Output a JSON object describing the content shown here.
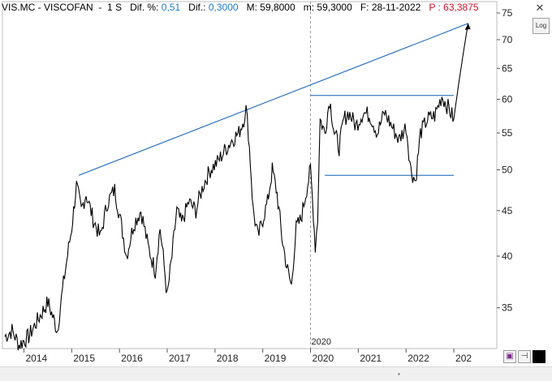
{
  "header": {
    "ticker": "VIS.MC - VISCOFAN",
    "period": "1 S",
    "dif_pct_label": "Dif. %:",
    "dif_pct_value": "0,51",
    "dif_label": "Dif.:",
    "dif_value": "0,3000",
    "high_label": "M:",
    "high_value": "59,8000",
    "low_label": "m:",
    "low_value": "59,3000",
    "date_label": "F:",
    "date_value": "28-11-2022",
    "price_label": "P :",
    "price_value": "63,3875"
  },
  "controls": {
    "close_glyph": "✕",
    "log_label": "Log",
    "save_glyph": "▣",
    "pin_glyph": "⊣",
    "color_glyph": ""
  },
  "colors": {
    "trendline": "#1060b8",
    "price": "#000000",
    "grid": "#c8c8c8",
    "header_blue": "#1f78c8",
    "header_red": "#d0142c"
  },
  "chart_data": {
    "type": "line",
    "title": "VIS.MC - VISCOFAN",
    "scale": "log",
    "ylim": [
      31.5,
      75
    ],
    "y_ticks": [
      35,
      40,
      45,
      50,
      55,
      60,
      65,
      70,
      75
    ],
    "x_ticks": [
      "2014",
      "2015",
      "2016",
      "2017",
      "2018",
      "2019",
      "2020",
      "2021",
      "2022",
      "202"
    ],
    "x_marker_label": "2020",
    "x_range": [
      2013.55,
      2023.9
    ],
    "series": [
      {
        "x": [
          2013.6,
          2013.75,
          2013.9,
          2014.1,
          2014.3,
          2014.5,
          2014.7,
          2014.85,
          2015.0,
          2015.1,
          2015.2,
          2015.3,
          2015.45,
          2015.6,
          2015.75,
          2015.9,
          2016.0,
          2016.15,
          2016.3,
          2016.45,
          2016.6,
          2016.75,
          2016.85,
          2017.0,
          2017.1,
          2017.2,
          2017.3,
          2017.45,
          2017.6,
          2017.75,
          2017.9,
          2018.05,
          2018.2,
          2018.35,
          2018.5,
          2018.6,
          2018.65,
          2018.7,
          2018.8,
          2018.9,
          2019.0,
          2019.1,
          2019.2,
          2019.3,
          2019.4,
          2019.5,
          2019.6,
          2019.7,
          2019.8,
          2019.9,
          2020.0,
          2020.1,
          2020.15,
          2020.2,
          2020.3,
          2020.4,
          2020.5,
          2020.6,
          2020.7,
          2020.8,
          2020.95,
          2021.1,
          2021.25,
          2021.4,
          2021.55,
          2021.7,
          2021.85,
          2022.0,
          2022.1,
          2022.2,
          2022.3,
          2022.45,
          2022.6,
          2022.75,
          2022.9,
          2023.0,
          2023.3
        ],
        "values": [
          32.5,
          33.0,
          31.8,
          32.5,
          34.0,
          35.5,
          33.0,
          38.0,
          43.0,
          48.0,
          45.0,
          47.0,
          44.0,
          42.0,
          46.0,
          47.5,
          44.5,
          40.0,
          43.5,
          45.0,
          41.0,
          38.5,
          43.0,
          36.0,
          40.0,
          45.0,
          43.5,
          46.0,
          45.0,
          48.0,
          50.0,
          51.0,
          52.5,
          54.0,
          55.0,
          57.0,
          58.5,
          55.0,
          45.0,
          42.0,
          44.0,
          46.0,
          50.0,
          47.0,
          42.0,
          39.0,
          37.0,
          43.0,
          44.0,
          47.0,
          50.0,
          41.0,
          44.0,
          57.0,
          55.0,
          60.0,
          55.0,
          53.0,
          57.0,
          58.0,
          56.0,
          58.0,
          57.5,
          55.0,
          58.0,
          56.0,
          54.0,
          56.0,
          50.0,
          48.5,
          55.0,
          57.0,
          57.5,
          60.5,
          58.5,
          57.0,
          73.0
        ]
      }
    ],
    "trendlines": [
      {
        "from": [
          2015.15,
          49.3
        ],
        "to": [
          2023.3,
          73.0
        ]
      },
      {
        "from": [
          2020.0,
          60.6
        ],
        "to": [
          2023.0,
          60.6
        ]
      },
      {
        "from": [
          2020.3,
          49.3
        ],
        "to": [
          2023.0,
          49.3
        ]
      }
    ],
    "grid": "none",
    "legend": "none"
  }
}
